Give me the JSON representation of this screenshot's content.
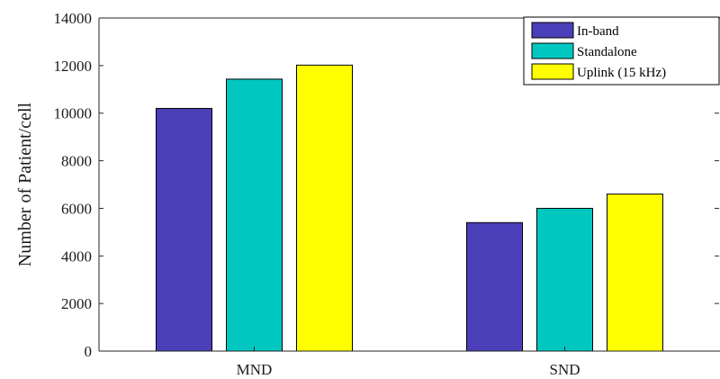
{
  "chart_data": {
    "type": "bar",
    "categories": [
      "MND",
      "SND"
    ],
    "series": [
      {
        "name": "In-band",
        "values": [
          10200,
          5400
        ],
        "color": "#4a3fb8"
      },
      {
        "name": "Standalone",
        "values": [
          11430,
          6000
        ],
        "color": "#00c8c0"
      },
      {
        "name": "Uplink (15 kHz)",
        "values": [
          12020,
          6600
        ],
        "color": "#ffff00"
      }
    ],
    "ylabel": "Number of Patient/cell",
    "ylim": [
      0,
      14000
    ],
    "yticks": [
      0,
      2000,
      4000,
      6000,
      8000,
      10000,
      12000,
      14000
    ],
    "grid": false,
    "legend_position": "top-right"
  }
}
